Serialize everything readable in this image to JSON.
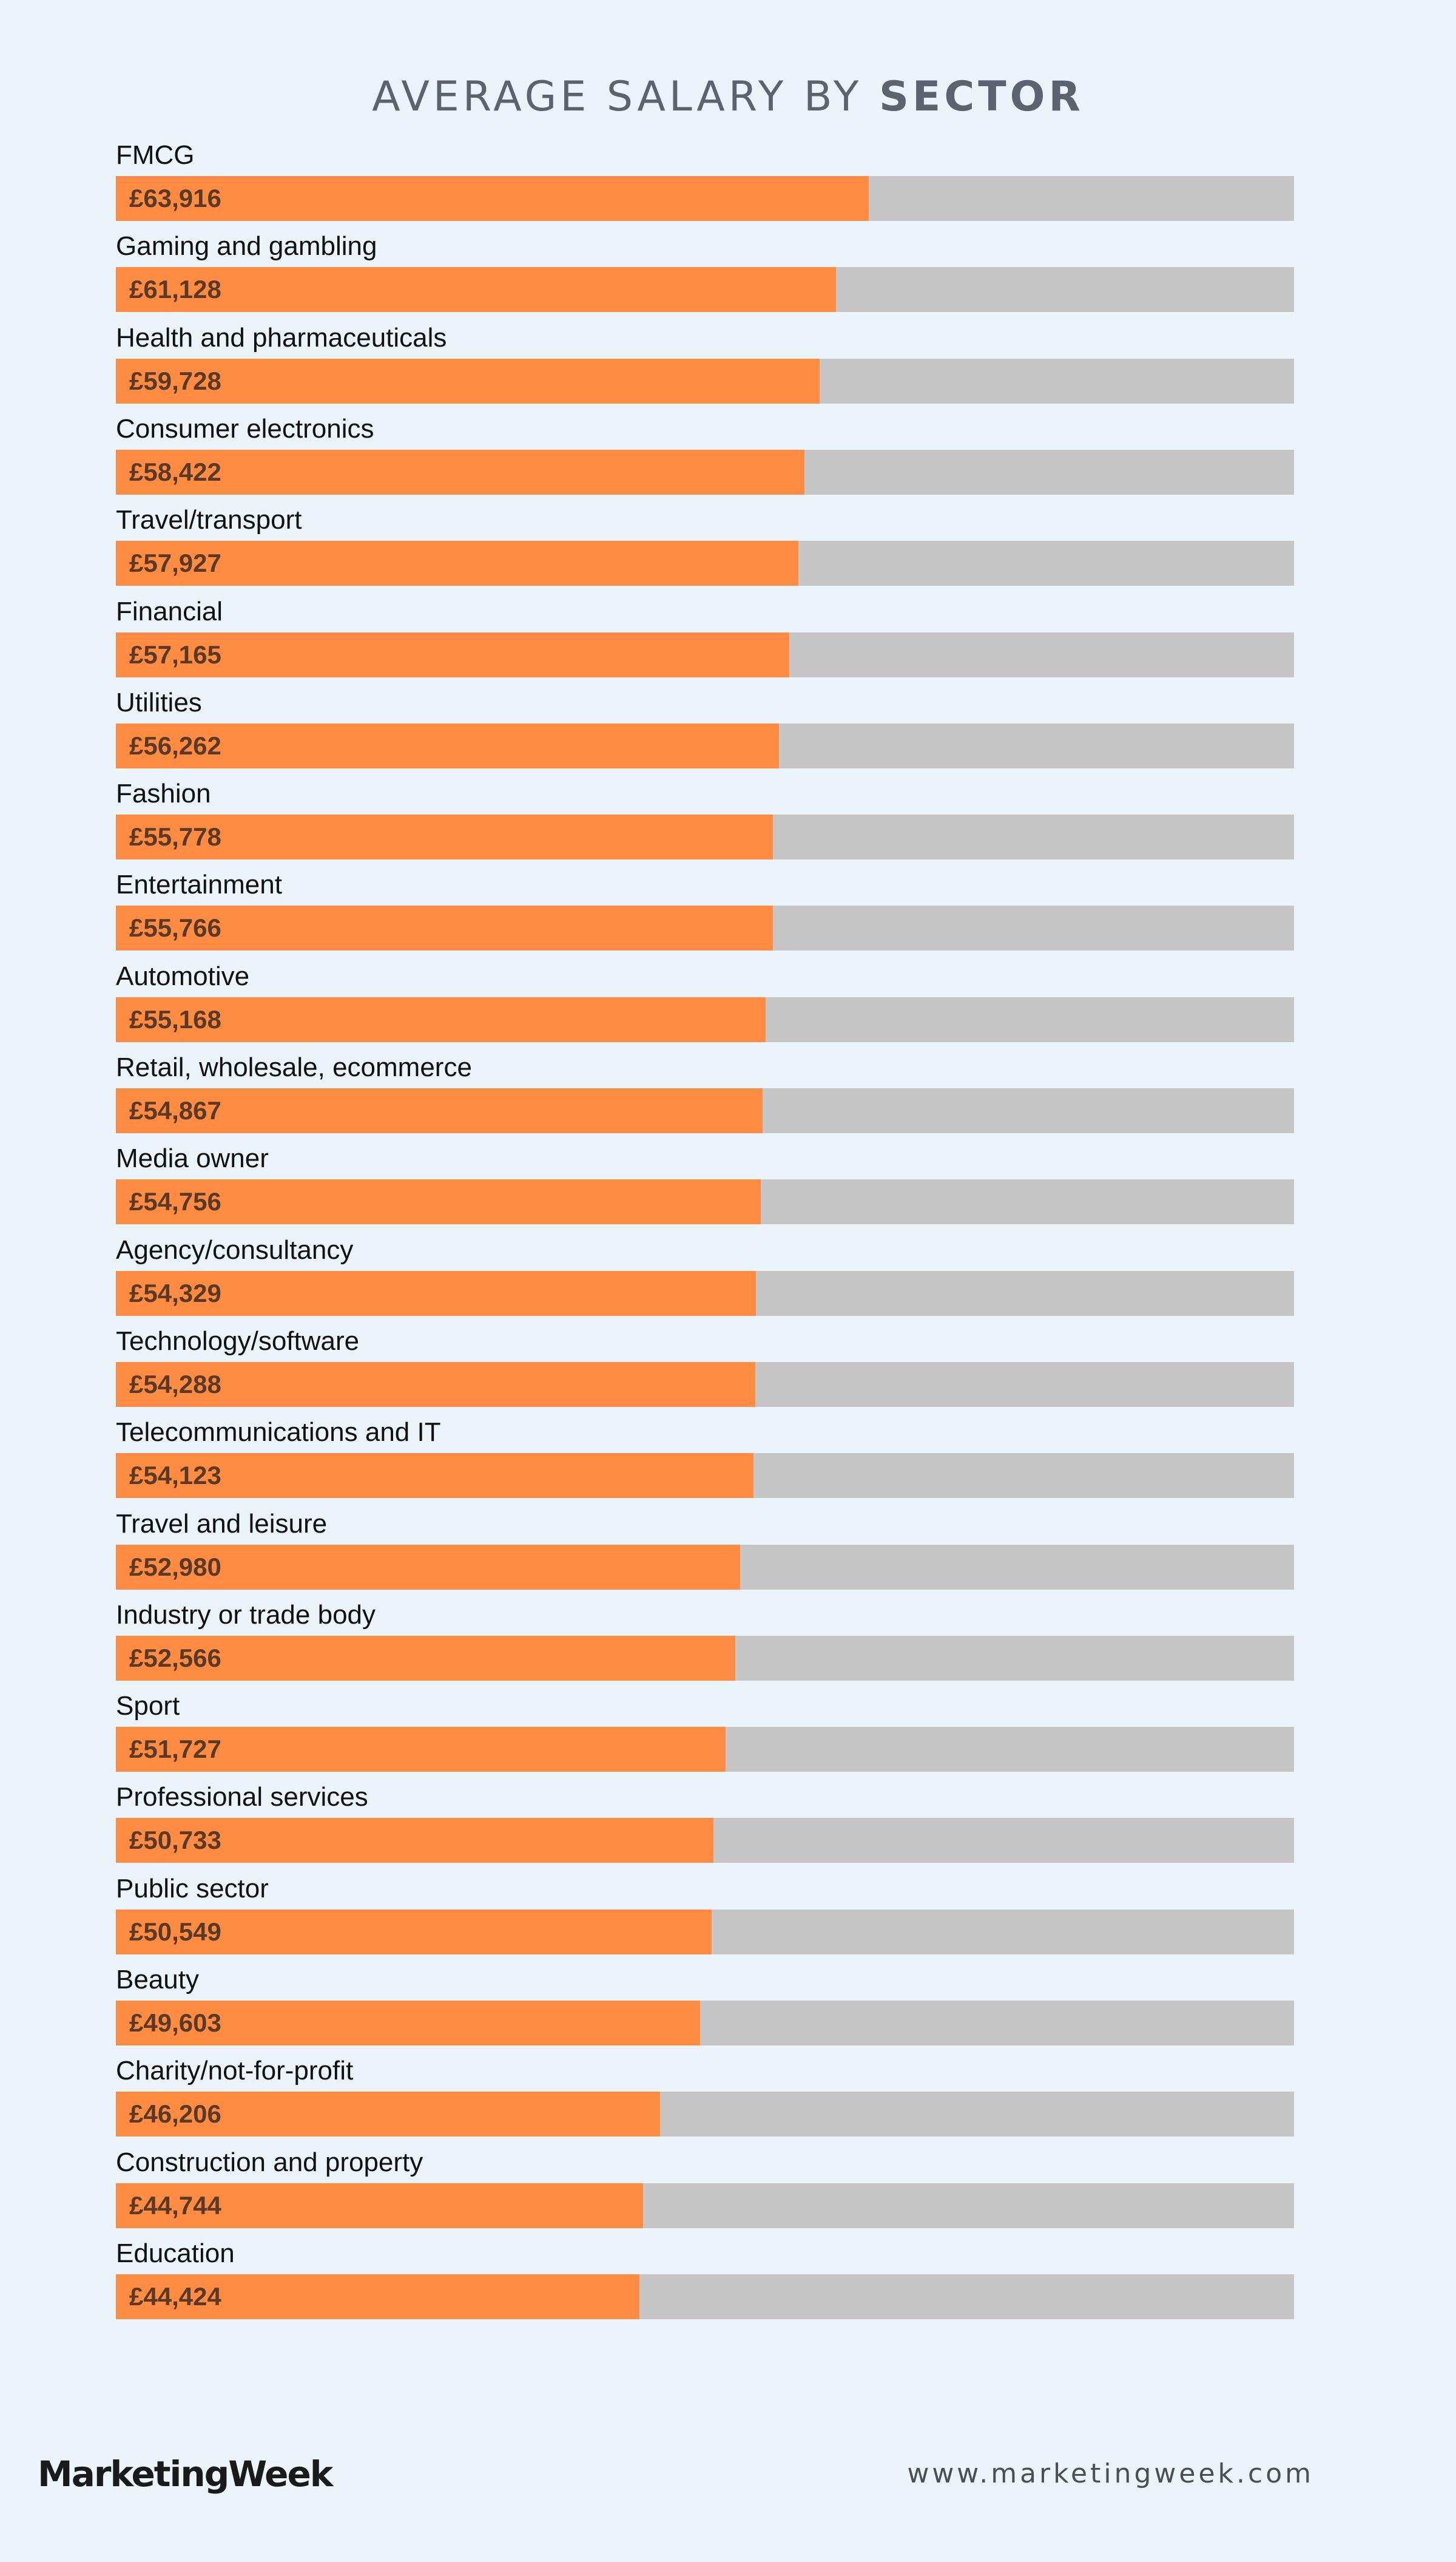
{
  "header": {
    "title_light": "AVERAGE SALARY BY ",
    "title_bold": "SECTOR"
  },
  "chart_data": {
    "type": "bar",
    "orientation": "horizontal",
    "categories": [
      "FMCG",
      "Gaming and gambling",
      "Health and pharmaceuticals",
      "Consumer electronics",
      "Travel/transport",
      "Financial",
      "Utilities",
      "Fashion",
      "Entertainment",
      "Automotive",
      "Retail, wholesale, ecommerce",
      "Media owner",
      "Agency/consultancy",
      "Technology/software",
      "Telecommunications and IT",
      "Travel and leisure",
      "Industry or trade body",
      "Sport",
      "Professional services",
      "Public sector",
      "Beauty",
      "Charity/not-for-profit",
      "Construction and property",
      "Education"
    ],
    "values": [
      63916,
      61128,
      59728,
      58422,
      57927,
      57165,
      56262,
      55778,
      55766,
      55168,
      54867,
      54756,
      54329,
      54288,
      54123,
      52980,
      52566,
      51727,
      50733,
      50549,
      49603,
      46206,
      44744,
      44424
    ],
    "value_labels": [
      "£63,916",
      "£61,128",
      "£59,728",
      "£58,422",
      "£57,927",
      "£57,165",
      "£56,262",
      "£55,778",
      "£55,766",
      "£55,168",
      "£54,867",
      "£54,756",
      "£54,329",
      "£54,288",
      "£54,123",
      "£52,980",
      "£52,566",
      "£51,727",
      "£50,733",
      "£50,549",
      "£49,603",
      "£46,206",
      "£44,744",
      "£44,424"
    ],
    "xlim": [
      0,
      100000
    ],
    "grid": false,
    "colors": {
      "bar": "#ff8c42",
      "track": "#c6c6c6",
      "background": "#eaf4fa"
    }
  },
  "footer": {
    "logo": "MarketingWeek",
    "website": "www.marketingweek.com"
  }
}
